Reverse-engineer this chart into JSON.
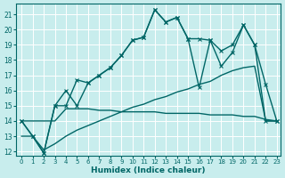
{
  "xlabel": "Humidex (Indice chaleur)",
  "bg_color": "#c8eded",
  "grid_color": "#ffffff",
  "line_color": "#006666",
  "xlim_min": -0.5,
  "xlim_max": 23.3,
  "ylim_min": 11.7,
  "ylim_max": 21.7,
  "yticks": [
    12,
    13,
    14,
    15,
    16,
    17,
    18,
    19,
    20,
    21
  ],
  "xticks": [
    0,
    1,
    2,
    3,
    4,
    5,
    6,
    7,
    8,
    9,
    10,
    11,
    12,
    13,
    14,
    15,
    16,
    17,
    18,
    19,
    20,
    21,
    22,
    23
  ],
  "line_jagged1_y": [
    14.0,
    13.0,
    11.9,
    15.0,
    16.0,
    15.0,
    16.5,
    17.0,
    17.5,
    18.3,
    19.3,
    19.5,
    21.3,
    20.5,
    20.8,
    19.4,
    19.4,
    19.3,
    18.6,
    19.0,
    20.3,
    19.0,
    16.4,
    14.0
  ],
  "line_jagged2_y": [
    14.0,
    13.0,
    11.9,
    15.0,
    15.0,
    16.7,
    16.5,
    17.0,
    17.5,
    18.3,
    19.3,
    19.5,
    21.3,
    20.5,
    20.8,
    19.4,
    16.2,
    19.3,
    17.6,
    18.5,
    20.3,
    19.0,
    14.0,
    14.0
  ],
  "line_flat_y": [
    14.0,
    14.0,
    14.0,
    14.0,
    14.8,
    14.8,
    14.8,
    14.7,
    14.7,
    14.6,
    14.6,
    14.6,
    14.6,
    14.5,
    14.5,
    14.5,
    14.5,
    14.4,
    14.4,
    14.4,
    14.3,
    14.3,
    14.1,
    14.0
  ],
  "line_rising_y": [
    13.0,
    13.0,
    12.1,
    12.5,
    13.0,
    13.4,
    13.7,
    14.0,
    14.3,
    14.6,
    14.9,
    15.1,
    15.4,
    15.6,
    15.9,
    16.1,
    16.4,
    16.6,
    17.0,
    17.3,
    17.5,
    17.6,
    14.0,
    14.0
  ],
  "xlabel_fontsize": 6.5,
  "tick_fontsize": 5.5,
  "lw": 1.0,
  "ms": 2.5
}
